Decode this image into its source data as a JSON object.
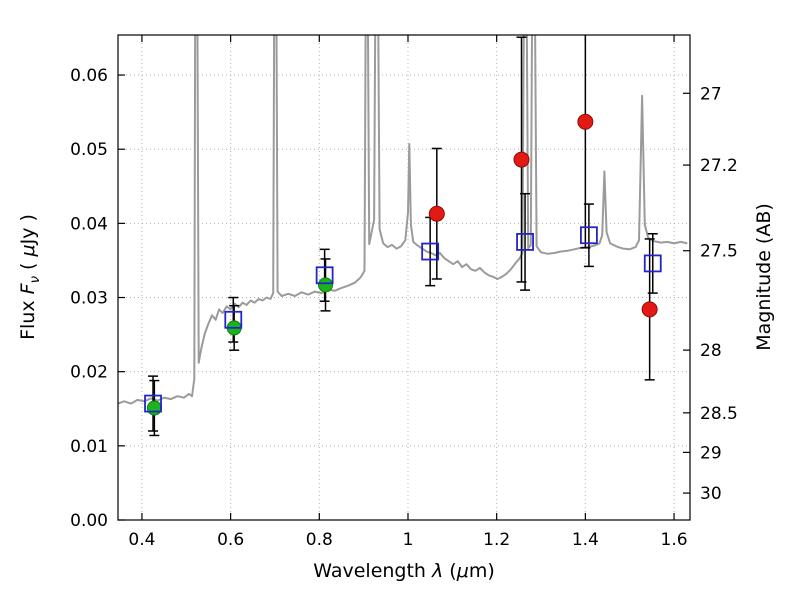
{
  "figure": {
    "bg": "#ffffff",
    "xlabel_parts": [
      {
        "t": "Wavelength  ",
        "i": false
      },
      {
        "t": "λ",
        "i": true
      },
      {
        "t": " (",
        "i": false
      },
      {
        "t": "μ",
        "i": true
      },
      {
        "t": "m)",
        "i": false
      }
    ],
    "ylabel_left_parts": [
      {
        "t": "Flux  ",
        "i": false
      },
      {
        "t": "F",
        "i": true
      },
      {
        "t": "ν",
        "i": true,
        "sub": true
      },
      {
        "t": "  ( ",
        "i": false
      },
      {
        "t": "μ",
        "i": true
      },
      {
        "t": "Jy )",
        "i": false
      }
    ],
    "ylabel_right_parts": [
      {
        "t": "Magnitude (AB)",
        "i": false
      }
    ]
  },
  "axes": {
    "xlim": [
      0.346,
      1.636
    ],
    "ylim": [
      0.0,
      0.0654
    ],
    "grid_color": "#b0b0b0",
    "frame_color": "#000000",
    "xticks": [
      {
        "v": 0.4,
        "label": "0.4"
      },
      {
        "v": 0.6,
        "label": "0.6"
      },
      {
        "v": 0.8,
        "label": "0.8"
      },
      {
        "v": 1.0,
        "label": "1"
      },
      {
        "v": 1.2,
        "label": "1.2"
      },
      {
        "v": 1.4,
        "label": "1.4"
      },
      {
        "v": 1.6,
        "label": "1.6"
      }
    ],
    "yticks_left": [
      {
        "v": 0.0,
        "label": "0.00"
      },
      {
        "v": 0.01,
        "label": "0.01"
      },
      {
        "v": 0.02,
        "label": "0.02"
      },
      {
        "v": 0.03,
        "label": "0.03"
      },
      {
        "v": 0.04,
        "label": "0.04"
      },
      {
        "v": 0.05,
        "label": "0.05"
      },
      {
        "v": 0.06,
        "label": "0.06"
      }
    ],
    "yticks_right": [
      {
        "v": 0.05754,
        "label": "27"
      },
      {
        "v": 0.04786,
        "label": "27.2"
      },
      {
        "v": 0.03631,
        "label": "27.5"
      },
      {
        "v": 0.02291,
        "label": "28"
      },
      {
        "v": 0.01445,
        "label": "28.5"
      },
      {
        "v": 0.00912,
        "label": "29"
      },
      {
        "v": 0.00363,
        "label": "30"
      }
    ]
  },
  "chart_data": {
    "type": "line+scatter",
    "title": "",
    "xlabel": "Wavelength λ (μm)",
    "ylabel": "Flux F_ν ( μJy )",
    "ylabel_right": "Magnitude (AB)",
    "xlim": [
      0.346,
      1.636
    ],
    "ylim": [
      0.0,
      0.0654
    ],
    "grid": "dotted",
    "errorbar_color": "#000000",
    "series": [
      {
        "name": "model-spectrum",
        "type": "line",
        "color": "#9b9b9b",
        "points": [
          [
            0.346,
            0.0157
          ],
          [
            0.36,
            0.016
          ],
          [
            0.375,
            0.0157
          ],
          [
            0.39,
            0.0162
          ],
          [
            0.405,
            0.016
          ],
          [
            0.42,
            0.0164
          ],
          [
            0.435,
            0.0161
          ],
          [
            0.45,
            0.0165
          ],
          [
            0.465,
            0.0163
          ],
          [
            0.48,
            0.0167
          ],
          [
            0.495,
            0.0165
          ],
          [
            0.506,
            0.017
          ],
          [
            0.513,
            0.0167
          ],
          [
            0.518,
            0.019
          ],
          [
            0.5205,
            0.08
          ],
          [
            0.5245,
            0.08
          ],
          [
            0.528,
            0.0212
          ],
          [
            0.534,
            0.0232
          ],
          [
            0.542,
            0.0252
          ],
          [
            0.55,
            0.0265
          ],
          [
            0.558,
            0.0276
          ],
          [
            0.566,
            0.027
          ],
          [
            0.574,
            0.0284
          ],
          [
            0.582,
            0.0279
          ],
          [
            0.591,
            0.0288
          ],
          [
            0.6,
            0.0284
          ],
          [
            0.609,
            0.0292
          ],
          [
            0.618,
            0.0287
          ],
          [
            0.627,
            0.0293
          ],
          [
            0.636,
            0.029
          ],
          [
            0.645,
            0.0296
          ],
          [
            0.654,
            0.0293
          ],
          [
            0.663,
            0.0298
          ],
          [
            0.672,
            0.0296
          ],
          [
            0.681,
            0.03
          ],
          [
            0.69,
            0.0298
          ],
          [
            0.696,
            0.0306
          ],
          [
            0.699,
            0.08
          ],
          [
            0.7025,
            0.08
          ],
          [
            0.706,
            0.0308
          ],
          [
            0.715,
            0.0302
          ],
          [
            0.73,
            0.0305
          ],
          [
            0.745,
            0.0302
          ],
          [
            0.76,
            0.0307
          ],
          [
            0.775,
            0.0304
          ],
          [
            0.79,
            0.0308
          ],
          [
            0.805,
            0.0306
          ],
          [
            0.82,
            0.0311
          ],
          [
            0.835,
            0.0309
          ],
          [
            0.85,
            0.0313
          ],
          [
            0.865,
            0.0316
          ],
          [
            0.88,
            0.032
          ],
          [
            0.893,
            0.0327
          ],
          [
            0.902,
            0.0336
          ],
          [
            0.9055,
            0.08
          ],
          [
            0.9085,
            0.08
          ],
          [
            0.9125,
            0.0372
          ],
          [
            0.918,
            0.0388
          ],
          [
            0.9235,
            0.0405
          ],
          [
            0.9275,
            0.08
          ],
          [
            0.9315,
            0.08
          ],
          [
            0.936,
            0.0392
          ],
          [
            0.944,
            0.0373
          ],
          [
            0.954,
            0.0368
          ],
          [
            0.964,
            0.0371
          ],
          [
            0.974,
            0.0366
          ],
          [
            0.984,
            0.0369
          ],
          [
            0.994,
            0.0377
          ],
          [
            1.0,
            0.0415
          ],
          [
            1.003,
            0.0507
          ],
          [
            1.0065,
            0.0398
          ],
          [
            1.012,
            0.0375
          ],
          [
            1.022,
            0.037
          ],
          [
            1.032,
            0.0366
          ],
          [
            1.042,
            0.0362
          ],
          [
            1.052,
            0.036
          ],
          [
            1.062,
            0.0357
          ],
          [
            1.072,
            0.036
          ],
          [
            1.082,
            0.0353
          ],
          [
            1.092,
            0.0349
          ],
          [
            1.102,
            0.0345
          ],
          [
            1.112,
            0.0349
          ],
          [
            1.122,
            0.0341
          ],
          [
            1.132,
            0.0345
          ],
          [
            1.142,
            0.0338
          ],
          [
            1.152,
            0.0336
          ],
          [
            1.162,
            0.034
          ],
          [
            1.172,
            0.0334
          ],
          [
            1.182,
            0.033
          ],
          [
            1.192,
            0.0328
          ],
          [
            1.202,
            0.0325
          ],
          [
            1.212,
            0.0328
          ],
          [
            1.222,
            0.0332
          ],
          [
            1.232,
            0.0338
          ],
          [
            1.242,
            0.0346
          ],
          [
            1.252,
            0.0353
          ],
          [
            1.258,
            0.036
          ],
          [
            1.2625,
            0.08
          ],
          [
            1.2665,
            0.08
          ],
          [
            1.271,
            0.0366
          ],
          [
            1.277,
            0.0371
          ],
          [
            1.281,
            0.08
          ],
          [
            1.285,
            0.08
          ],
          [
            1.29,
            0.0369
          ],
          [
            1.3,
            0.0361
          ],
          [
            1.315,
            0.0359
          ],
          [
            1.33,
            0.036
          ],
          [
            1.345,
            0.0362
          ],
          [
            1.36,
            0.0363
          ],
          [
            1.375,
            0.0365
          ],
          [
            1.39,
            0.0367
          ],
          [
            1.405,
            0.0368
          ],
          [
            1.42,
            0.037
          ],
          [
            1.432,
            0.0373
          ],
          [
            1.438,
            0.0384
          ],
          [
            1.443,
            0.047
          ],
          [
            1.448,
            0.0388
          ],
          [
            1.456,
            0.0373
          ],
          [
            1.47,
            0.0369
          ],
          [
            1.485,
            0.0366
          ],
          [
            1.5,
            0.0365
          ],
          [
            1.513,
            0.0368
          ],
          [
            1.521,
            0.0377
          ],
          [
            1.528,
            0.0572
          ],
          [
            1.534,
            0.0398
          ],
          [
            1.542,
            0.038
          ],
          [
            1.555,
            0.0376
          ],
          [
            1.57,
            0.0374
          ],
          [
            1.585,
            0.0375
          ],
          [
            1.6,
            0.0373
          ],
          [
            1.615,
            0.0375
          ],
          [
            1.63,
            0.0373
          ]
        ]
      },
      {
        "name": "green-photometry",
        "type": "scatter",
        "marker": "filled-circle",
        "color": "#1db31d",
        "edge": "#0e800e",
        "size": 7,
        "points": [
          {
            "x": 0.428,
            "y": 0.0151,
            "e": 0.0037
          },
          {
            "x": 0.608,
            "y": 0.0259,
            "e": 0.003
          },
          {
            "x": 0.814,
            "y": 0.0317,
            "e": 0.0035
          }
        ]
      },
      {
        "name": "red-photometry",
        "type": "scatter",
        "marker": "filled-circle",
        "color": "#e31a13",
        "edge": "#8f0b06",
        "size": 7.5,
        "points": [
          {
            "x": 1.065,
            "y": 0.0413,
            "e": 0.0088
          },
          {
            "x": 1.256,
            "y": 0.0486,
            "e": 0.0165
          },
          {
            "x": 1.4,
            "y": 0.0537,
            "e": 0.017
          },
          {
            "x": 1.545,
            "y": 0.0284,
            "e": 0.0095
          }
        ]
      },
      {
        "name": "blue-photometry",
        "type": "scatter",
        "marker": "open-square",
        "color": "#2424cc",
        "size": 16,
        "points": [
          {
            "x": 0.425,
            "y": 0.0157,
            "e": 0.0037
          },
          {
            "x": 0.606,
            "y": 0.027,
            "e": 0.003
          },
          {
            "x": 0.812,
            "y": 0.033,
            "e": 0.0035
          },
          {
            "x": 1.05,
            "y": 0.0362,
            "e": 0.0046
          },
          {
            "x": 1.264,
            "y": 0.0375,
            "e": 0.0065
          },
          {
            "x": 1.408,
            "y": 0.0384,
            "e": 0.0042
          },
          {
            "x": 1.552,
            "y": 0.0346,
            "e": 0.004
          }
        ]
      }
    ]
  }
}
